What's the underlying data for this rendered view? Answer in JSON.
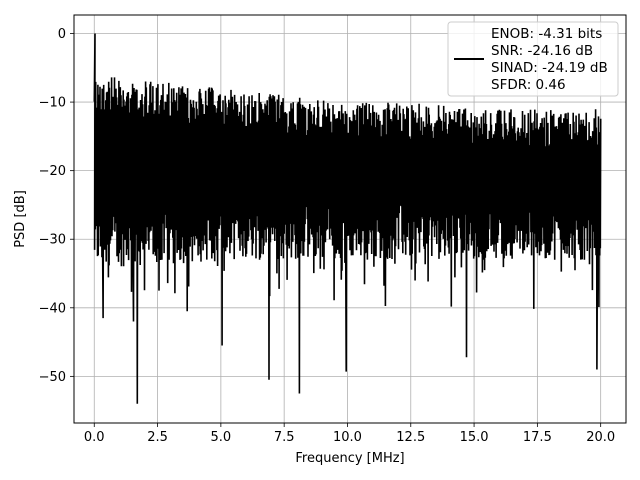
{
  "chart_data": {
    "type": "line",
    "title": "",
    "xlabel": "Frequency [MHz]",
    "ylabel": "PSD [dB]",
    "xlim": [
      -0.8,
      21.0
    ],
    "ylim": [
      -56.8,
      2.7
    ],
    "xticks": [
      0.0,
      2.5,
      5.0,
      7.5,
      10.0,
      12.5,
      15.0,
      17.5,
      20.0
    ],
    "xtick_labels": [
      "0.0",
      "2.5",
      "5.0",
      "7.5",
      "10.0",
      "12.5",
      "15.0",
      "17.5",
      "20.0"
    ],
    "yticks": [
      0,
      -10,
      -20,
      -30,
      -40,
      -50
    ],
    "ytick_labels": [
      "0",
      "−10",
      "−20",
      "−30",
      "−40",
      "−50"
    ],
    "grid": true,
    "legend_position": "top-right",
    "series": [
      {
        "color": "#000000",
        "x_range": [
          0.0,
          20.0
        ],
        "peak": {
          "x": 0.03,
          "y": 0.0
        },
        "noise_floor_envelope": {
          "x": [
            0.0,
            2.5,
            5.0,
            7.5,
            10.0,
            12.5,
            15.0,
            17.5,
            20.0
          ],
          "upper": [
            -6,
            -7,
            -8,
            -9,
            -10,
            -10,
            -11,
            -11,
            -11
          ],
          "lower": [
            -34,
            -34,
            -33,
            -33,
            -33,
            -33,
            -33,
            -33,
            -33
          ]
        },
        "notable_minima": [
          {
            "x": 0.35,
            "y": -41.5
          },
          {
            "x": 1.55,
            "y": -42.0
          },
          {
            "x": 1.7,
            "y": -54.0
          },
          {
            "x": 5.05,
            "y": -45.5
          },
          {
            "x": 6.9,
            "y": -50.5
          },
          {
            "x": 8.1,
            "y": -52.5
          },
          {
            "x": 9.95,
            "y": -49.3
          },
          {
            "x": 14.7,
            "y": -47.2
          },
          {
            "x": 19.85,
            "y": -49.0
          }
        ]
      }
    ],
    "legend": {
      "lines": [
        "ENOB: -4.31 bits",
        "SNR: -24.16 dB",
        "SINAD: -24.19 dB",
        "SFDR: 0.46"
      ]
    }
  }
}
